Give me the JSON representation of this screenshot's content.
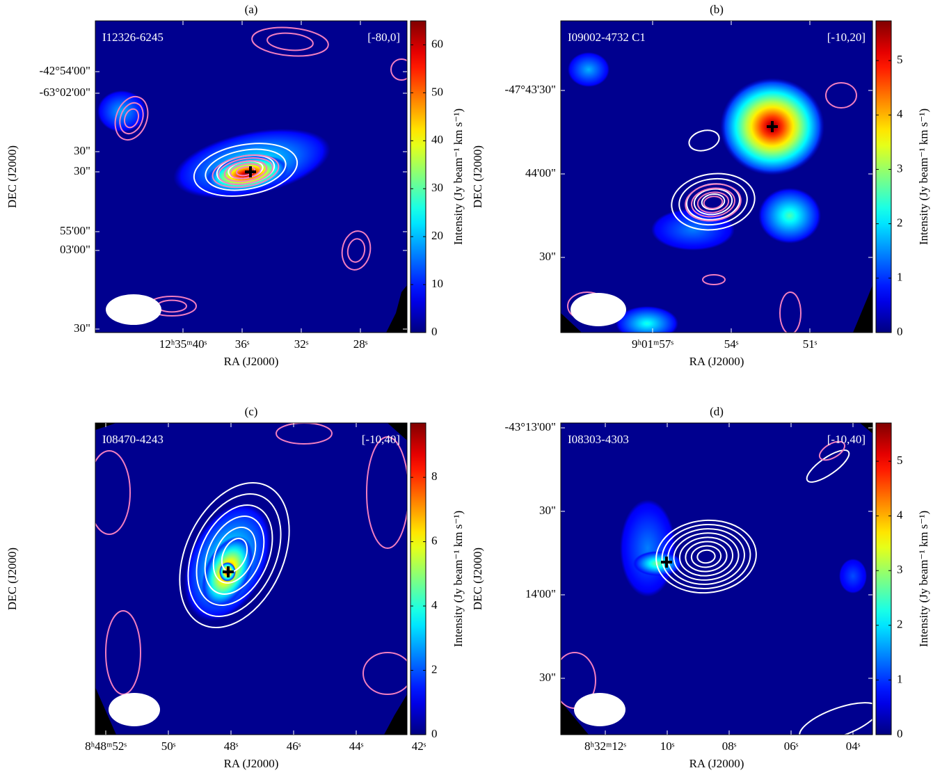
{
  "chart_data": [
    {
      "type": "image",
      "title": "(a)",
      "source": "I12326-6245",
      "velocity_range": "[-80,0]",
      "xlabel": "RA (J2000)",
      "ylabel": "DEC (J2000)",
      "ra_ticks": [
        "12ʰ35ᵐ40ˢ",
        "36ˢ",
        "32ˢ",
        "28ˢ"
      ],
      "dec_ticks": [
        "-63°02'00\"",
        "30\"",
        "03'00\"",
        "30\""
      ],
      "colormap": "jet",
      "colorbar": {
        "label": "Intensity (Jy beam⁻¹ km s⁻¹)",
        "lim": [
          0,
          65
        ],
        "ticks": [
          0,
          10,
          20,
          30,
          40,
          50,
          60
        ]
      }
    },
    {
      "type": "image",
      "title": "(b)",
      "source": "I09002-4732 C1",
      "velocity_range": "[-10,20]",
      "xlabel": "RA (J2000)",
      "ylabel": "DEC (J2000)",
      "ra_ticks": [
        "9ʰ01ᵐ57ˢ",
        "54ˢ",
        "51ˢ"
      ],
      "dec_ticks": [
        "-47°43'30\"",
        "44'00\"",
        "30\""
      ],
      "colormap": "jet",
      "colorbar": {
        "label": "Intensity (Jy beam⁻¹ km s⁻¹)",
        "lim": [
          0,
          5.73
        ],
        "ticks": [
          0,
          1,
          2,
          3,
          4,
          5
        ]
      }
    },
    {
      "type": "image",
      "title": "(c)",
      "source": "I08470-4243",
      "velocity_range": "[-10,40]",
      "xlabel": "RA (J2000)",
      "ylabel": "DEC (J2000)",
      "ra_ticks": [
        "8ʰ48ᵐ52ˢ",
        "50ˢ",
        "48ˢ",
        "46ˢ",
        "44ˢ",
        "42ˢ"
      ],
      "dec_ticks": [
        "-42°54'00\"",
        "30\"",
        "55'00\""
      ],
      "colormap": "jet",
      "colorbar": {
        "label": "Intensity (Jy beam⁻¹ km s⁻¹)",
        "lim": [
          0,
          9.69
        ],
        "ticks": [
          0,
          2,
          4,
          6,
          8
        ]
      }
    },
    {
      "type": "image",
      "title": "(d)",
      "source": "I08303-4303",
      "velocity_range": "[-10,40]",
      "xlabel": "RA (J2000)",
      "ylabel": "DEC (J2000)",
      "ra_ticks": [
        "8ʰ32ᵐ12ˢ",
        "10ˢ",
        "08ˢ",
        "06ˢ",
        "04ˢ"
      ],
      "dec_ticks": [
        "-43°13'00\"",
        "30\"",
        "14'00\"",
        "30\""
      ],
      "colormap": "jet",
      "colorbar": {
        "label": "Intensity (Jy beam⁻¹ km s⁻¹)",
        "lim": [
          0,
          5.7
        ],
        "ticks": [
          0,
          1,
          2,
          3,
          4,
          5
        ]
      }
    }
  ]
}
